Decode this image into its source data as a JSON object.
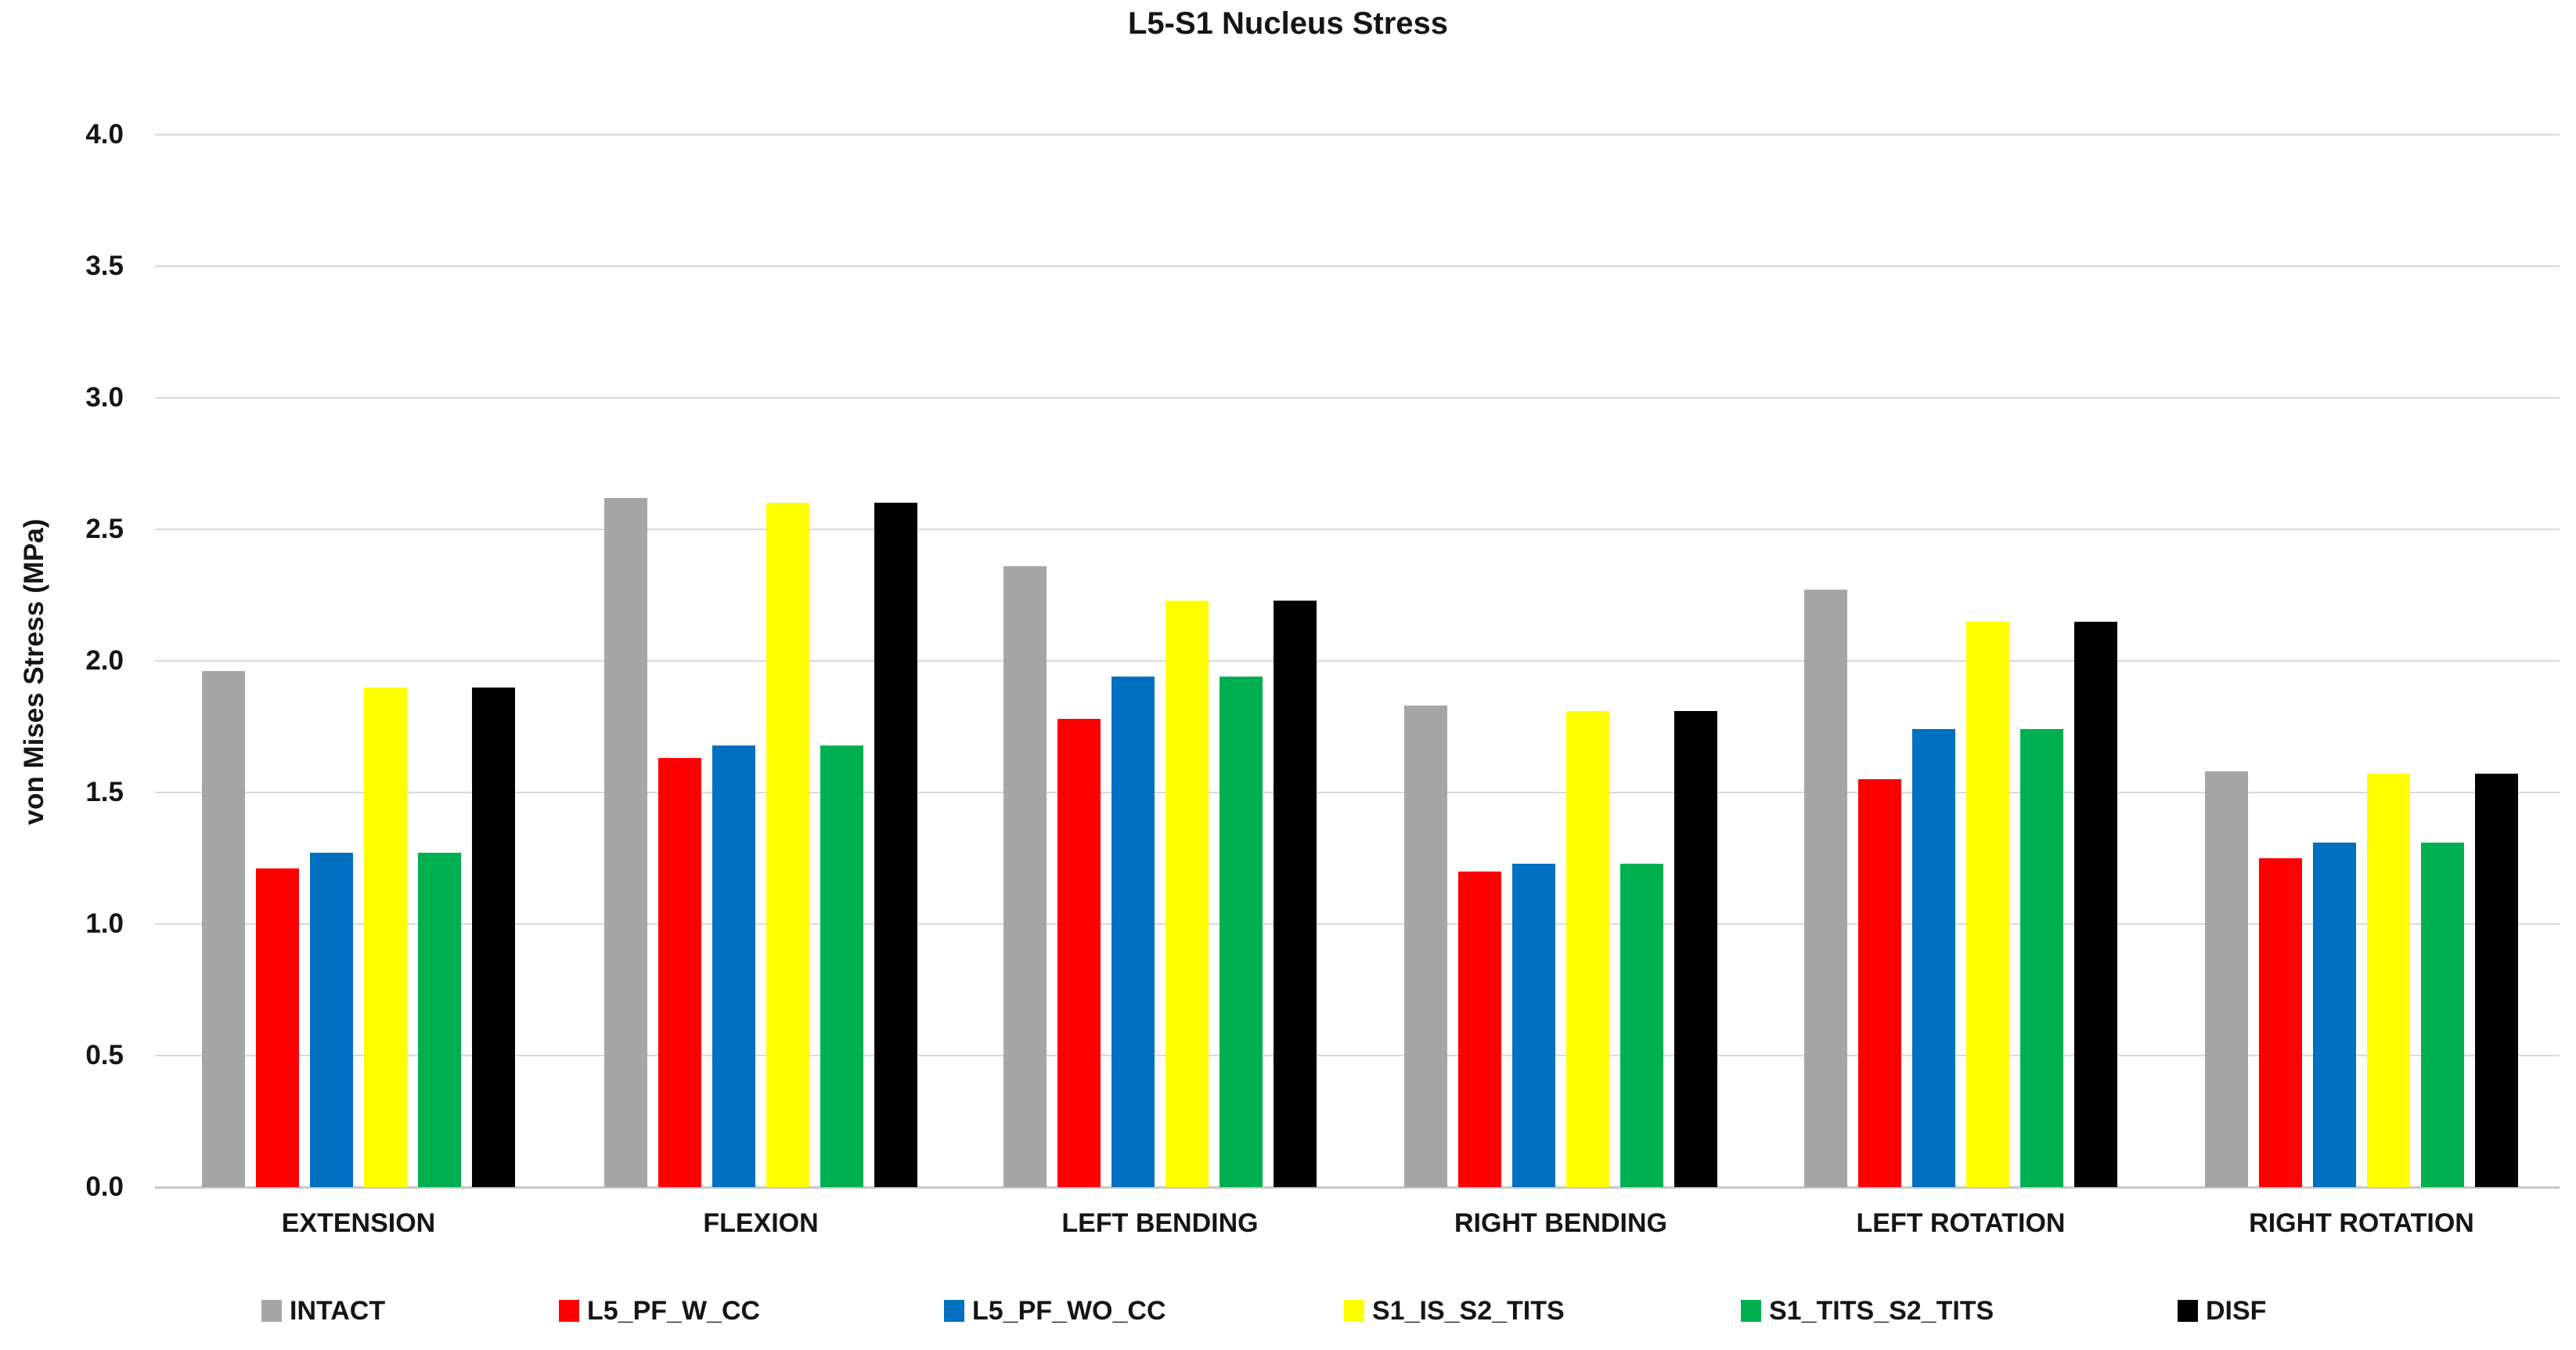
{
  "title": "L5-S1 Nucleus Stress",
  "chart_data": {
    "type": "bar",
    "title": "L5-S1 Nucleus Stress",
    "xlabel": "",
    "ylabel": "von Mises Stress (MPa)",
    "ylim": [
      0.0,
      4.0
    ],
    "ytick_step": 0.5,
    "ytick_labels": [
      "0.0",
      "0.5",
      "1.0",
      "1.5",
      "2.0",
      "2.5",
      "3.0",
      "3.5",
      "4.0"
    ],
    "grid": true,
    "legend_position": "bottom",
    "categories": [
      "EXTENSION",
      "FLEXION",
      "LEFT BENDING",
      "RIGHT BENDING",
      "LEFT ROTATION",
      "RIGHT ROTATION"
    ],
    "series": [
      {
        "name": "INTACT",
        "color": "#A6A6A6",
        "values": [
          1.96,
          2.62,
          2.36,
          1.83,
          2.27,
          1.58
        ]
      },
      {
        "name": "L5_PF_W_CC",
        "color": "#FF0000",
        "values": [
          1.21,
          1.63,
          1.78,
          1.2,
          1.55,
          1.25
        ]
      },
      {
        "name": "L5_PF_WO_CC",
        "color": "#0070C0",
        "values": [
          1.27,
          1.68,
          1.94,
          1.23,
          1.74,
          1.31
        ]
      },
      {
        "name": "S1_IS_S2_TITS",
        "color": "#FFFF00",
        "values": [
          1.9,
          2.6,
          2.23,
          1.81,
          2.15,
          1.57
        ]
      },
      {
        "name": "S1_TITS_S2_TITS",
        "color": "#00B050",
        "values": [
          1.27,
          1.68,
          1.94,
          1.23,
          1.74,
          1.31
        ]
      },
      {
        "name": "DISF",
        "color": "#000000",
        "values": [
          1.9,
          2.6,
          2.23,
          1.81,
          2.15,
          1.57
        ]
      }
    ]
  },
  "colors": {
    "gridline": "#D9D9D9",
    "baseline": "#C8C8C8",
    "text": "#151515",
    "background": "#FFFFFF"
  }
}
